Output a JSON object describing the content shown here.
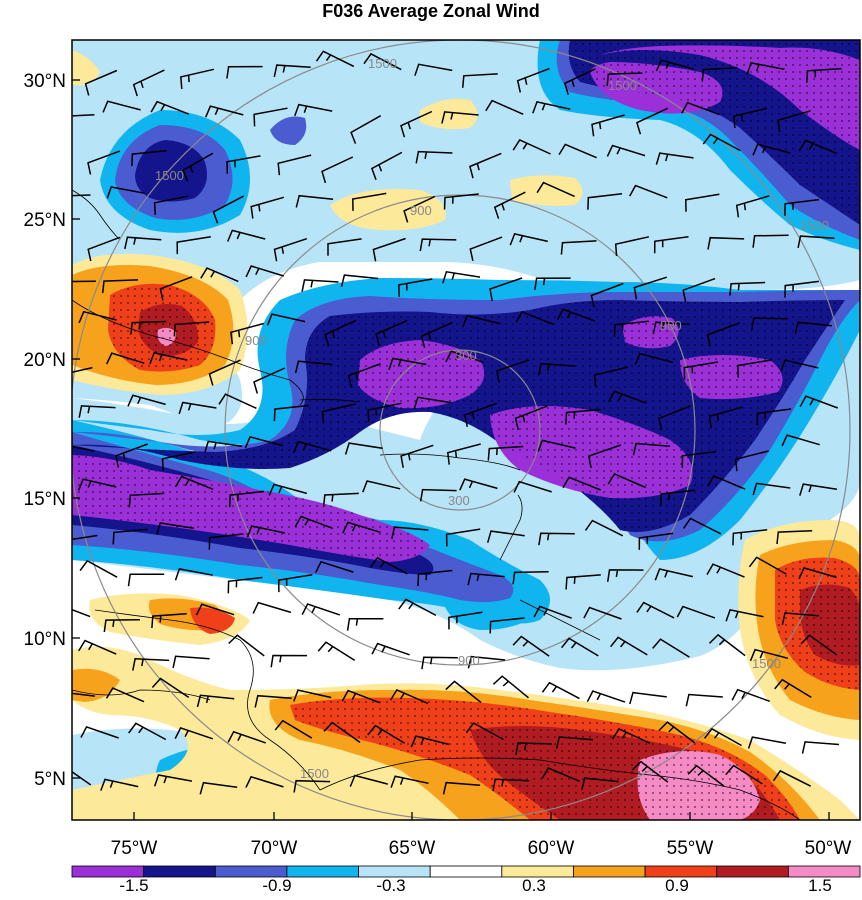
{
  "title": "F036 Average Zonal Wind",
  "map": {
    "lon_ticks": [
      "75°W",
      "70°W",
      "65°W",
      "60°W",
      "55°W",
      "50°W"
    ],
    "lat_ticks": [
      "30°N",
      "25°N",
      "20°N",
      "15°N",
      "10°N",
      "5°N"
    ],
    "ring_labels": [
      "300",
      "300",
      "900",
      "900",
      "900",
      "900",
      "1500",
      "1500",
      "1500",
      "1500",
      "1500",
      "1500"
    ],
    "colors": {
      "n5": "#9b30d9",
      "n4": "#14148c",
      "n3": "#4a5cd0",
      "n2": "#10b4ef",
      "n1": "#b8e4f8",
      "zero": "#ffffff",
      "p1": "#fde99a",
      "p2": "#f6a21c",
      "p3": "#f0401a",
      "p4": "#b01c22",
      "p5": "#f58ac4"
    }
  },
  "colorbar": {
    "labels": [
      "-1.5",
      "-0.9",
      "-0.3",
      "0.3",
      "0.9",
      "1.5"
    ],
    "colors": [
      "#9b30d9",
      "#14148c",
      "#4a5cd0",
      "#10b4ef",
      "#b8e4f8",
      "#ffffff",
      "#fde99a",
      "#f6a21c",
      "#f0401a",
      "#b01c22",
      "#f58ac4"
    ]
  }
}
